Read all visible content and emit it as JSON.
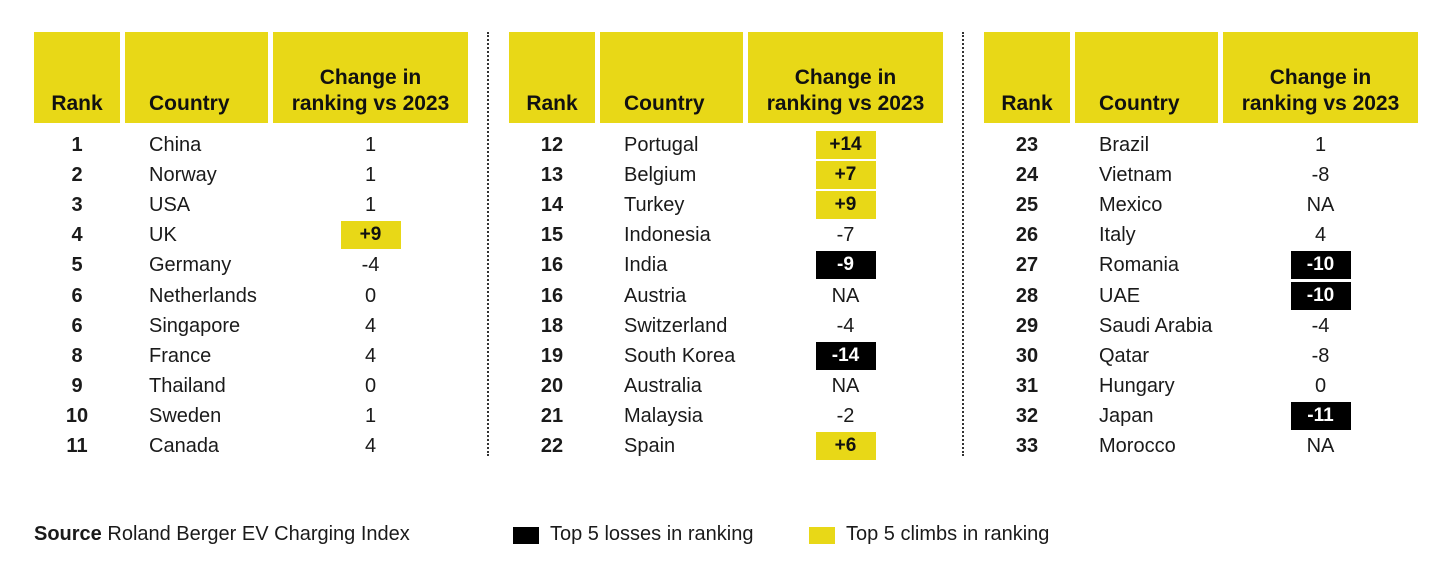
{
  "headers": {
    "rank": "Rank",
    "country": "Country",
    "change_line1": "Change in",
    "change_line2": "ranking vs 2023"
  },
  "colors": {
    "accent_yellow": "#e8d817",
    "loss_black": "#000000"
  },
  "chart_data": {
    "type": "table",
    "columns": [
      "Rank",
      "Country",
      "Change in ranking vs 2023"
    ],
    "panels": [
      [
        {
          "rank": "1",
          "country": "China",
          "change": "1",
          "highlight": ""
        },
        {
          "rank": "2",
          "country": "Norway",
          "change": "1",
          "highlight": ""
        },
        {
          "rank": "3",
          "country": "USA",
          "change": "1",
          "highlight": ""
        },
        {
          "rank": "4",
          "country": "UK",
          "change": "+9",
          "highlight": "climb"
        },
        {
          "rank": "5",
          "country": "Germany",
          "change": "-4",
          "highlight": ""
        },
        {
          "rank": "6",
          "country": "Netherlands",
          "change": "0",
          "highlight": ""
        },
        {
          "rank": "6",
          "country": "Singapore",
          "change": "4",
          "highlight": ""
        },
        {
          "rank": "8",
          "country": "France",
          "change": "4",
          "highlight": ""
        },
        {
          "rank": "9",
          "country": "Thailand",
          "change": "0",
          "highlight": ""
        },
        {
          "rank": "10",
          "country": "Sweden",
          "change": "1",
          "highlight": ""
        },
        {
          "rank": "11",
          "country": "Canada",
          "change": "4",
          "highlight": ""
        }
      ],
      [
        {
          "rank": "12",
          "country": "Portugal",
          "change": "+14",
          "highlight": "climb"
        },
        {
          "rank": "13",
          "country": "Belgium",
          "change": "+7",
          "highlight": "climb"
        },
        {
          "rank": "14",
          "country": "Turkey",
          "change": "+9",
          "highlight": "climb"
        },
        {
          "rank": "15",
          "country": "Indonesia",
          "change": "-7",
          "highlight": ""
        },
        {
          "rank": "16",
          "country": "India",
          "change": "-9",
          "highlight": "loss"
        },
        {
          "rank": "16",
          "country": "Austria",
          "change": "NA",
          "highlight": ""
        },
        {
          "rank": "18",
          "country": "Switzerland",
          "change": "-4",
          "highlight": ""
        },
        {
          "rank": "19",
          "country": "South Korea",
          "change": "-14",
          "highlight": "loss"
        },
        {
          "rank": "20",
          "country": "Australia",
          "change": "NA",
          "highlight": ""
        },
        {
          "rank": "21",
          "country": "Malaysia",
          "change": "-2",
          "highlight": ""
        },
        {
          "rank": "22",
          "country": "Spain",
          "change": "+6",
          "highlight": "climb"
        }
      ],
      [
        {
          "rank": "23",
          "country": "Brazil",
          "change": "1",
          "highlight": ""
        },
        {
          "rank": "24",
          "country": "Vietnam",
          "change": "-8",
          "highlight": ""
        },
        {
          "rank": "25",
          "country": "Mexico",
          "change": "NA",
          "highlight": ""
        },
        {
          "rank": "26",
          "country": "Italy",
          "change": "4",
          "highlight": ""
        },
        {
          "rank": "27",
          "country": "Romania",
          "change": "-10",
          "highlight": "loss"
        },
        {
          "rank": "28",
          "country": "UAE",
          "change": "-10",
          "highlight": "loss"
        },
        {
          "rank": "29",
          "country": "Saudi Arabia",
          "change": "-4",
          "highlight": ""
        },
        {
          "rank": "30",
          "country": "Qatar",
          "change": "-8",
          "highlight": ""
        },
        {
          "rank": "31",
          "country": "Hungary",
          "change": "0",
          "highlight": ""
        },
        {
          "rank": "32",
          "country": "Japan",
          "change": "-11",
          "highlight": "loss"
        },
        {
          "rank": "33",
          "country": "Morocco",
          "change": "NA",
          "highlight": ""
        }
      ]
    ]
  },
  "footer": {
    "source_label": "Source",
    "source_text": "Roland Berger EV Charging Index",
    "legend_losses": "Top 5 losses in ranking",
    "legend_climbs": "Top 5 climbs in ranking"
  }
}
